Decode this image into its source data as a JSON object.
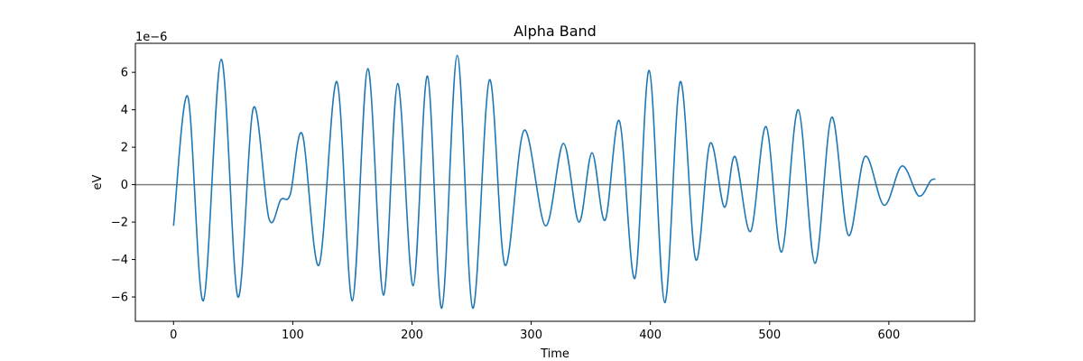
{
  "chart_data": {
    "type": "line",
    "title": "Alpha Band",
    "xlabel": "Time",
    "ylabel": "eV",
    "y_offset_text": "1e−6",
    "xlim": [
      -32,
      672
    ],
    "ylim": [
      -7.3,
      7.55
    ],
    "x_ticks": [
      0,
      100,
      200,
      300,
      400,
      500,
      600
    ],
    "y_ticks": [
      -6,
      -4,
      -2,
      0,
      2,
      4,
      6
    ],
    "x_tick_labels": [
      "0",
      "100",
      "200",
      "300",
      "400",
      "500",
      "600"
    ],
    "y_tick_labels": [
      "−6",
      "−4",
      "−2",
      "0",
      "2",
      "4",
      "6"
    ],
    "grid": false,
    "reference_line": {
      "y": 0,
      "color": "#808080"
    },
    "series": [
      {
        "color": "#1f77b4",
        "x": [
          0,
          12,
          25,
          40,
          54,
          67,
          80,
          90,
          98,
          108,
          122,
          137,
          150,
          163,
          176,
          188,
          201,
          213,
          225,
          238,
          251,
          265,
          278,
          294,
          312,
          327,
          340,
          351,
          362,
          374,
          387,
          399,
          412,
          425,
          438,
          450,
          462,
          471,
          484,
          497,
          510,
          524,
          538,
          552,
          566,
          580,
          596,
          611,
          625,
          635,
          639
        ],
        "values": [
          -2.2,
          4.7,
          -6.2,
          6.7,
          -6.0,
          4.1,
          -1.8,
          -0.8,
          -0.5,
          2.7,
          -4.3,
          5.5,
          -6.2,
          6.2,
          -5.9,
          5.4,
          -5.4,
          5.8,
          -6.6,
          6.9,
          -6.6,
          5.6,
          -4.3,
          2.9,
          -2.2,
          2.2,
          -2.0,
          1.7,
          -1.9,
          3.4,
          -5.0,
          6.1,
          -6.3,
          5.5,
          -4.0,
          2.2,
          -1.2,
          1.5,
          -2.5,
          3.1,
          -3.6,
          4.0,
          -4.2,
          3.6,
          -2.7,
          1.5,
          -1.1,
          1.0,
          -0.6,
          0.2,
          0.3
        ]
      }
    ]
  }
}
